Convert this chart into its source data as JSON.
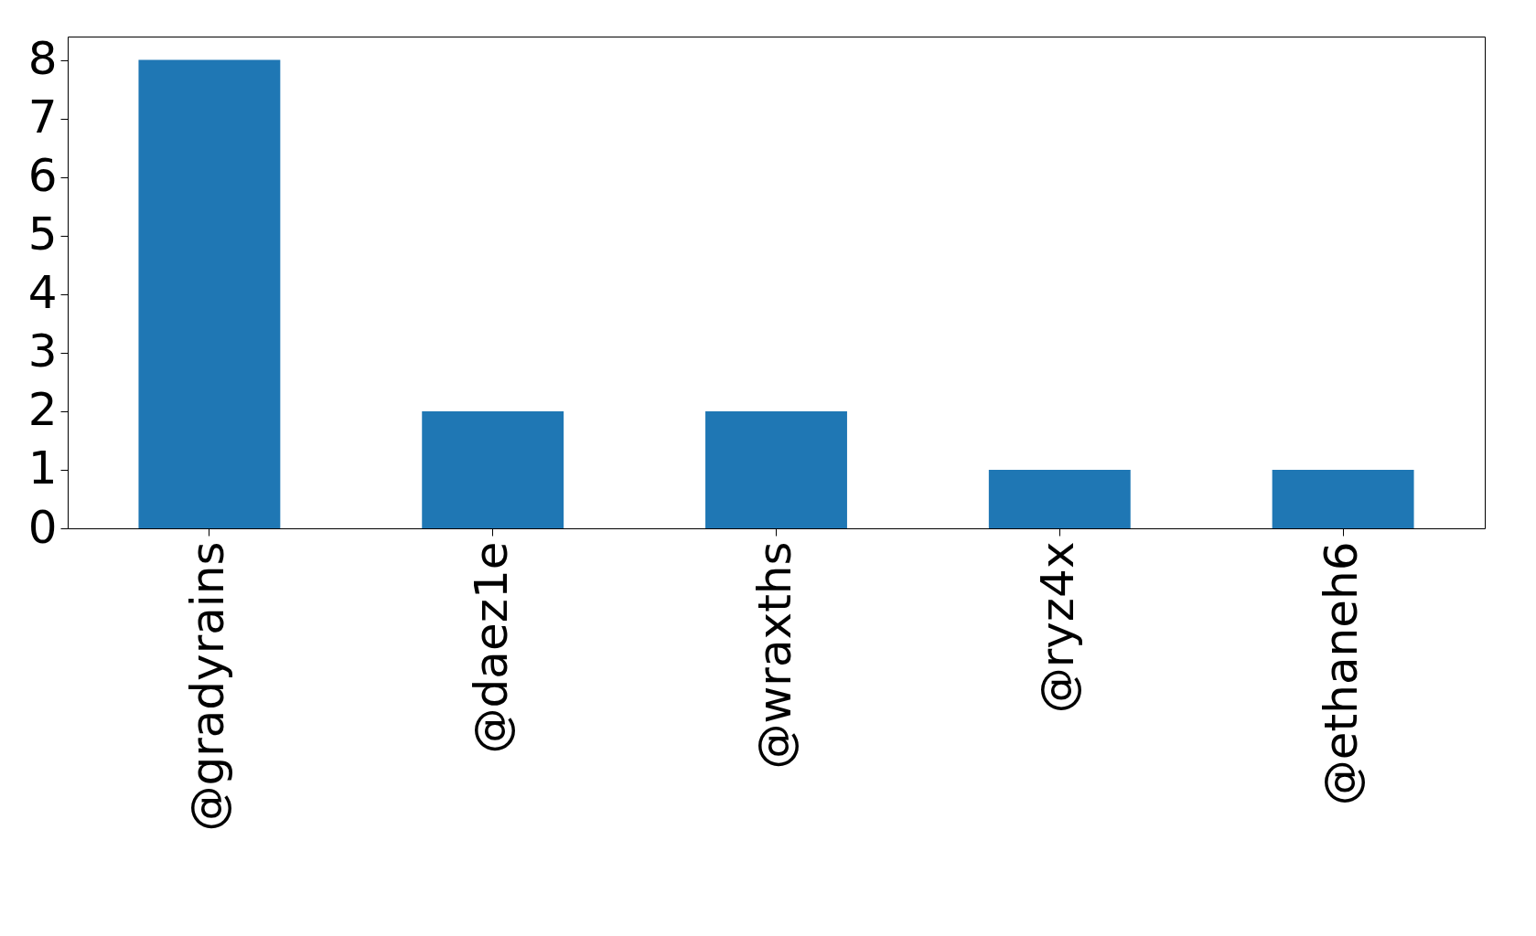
{
  "chart_data": {
    "type": "bar",
    "categories": [
      "@gradyrains",
      "@daez1e",
      "@wraxths",
      "@ryz4x",
      "@ethaneh6"
    ],
    "values": [
      8,
      2,
      2,
      1,
      1
    ],
    "color": "#1f77b4",
    "ylim": [
      0,
      8.4
    ],
    "yticks": [
      0,
      1,
      2,
      3,
      4,
      5,
      6,
      7,
      8
    ],
    "grid": false
  }
}
